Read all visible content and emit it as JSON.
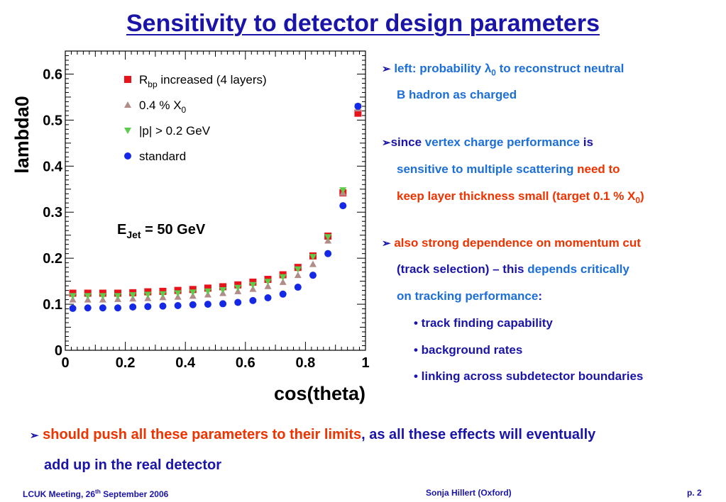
{
  "slide": {
    "title": "Sensitivity to detector design parameters",
    "left_bullet": {
      "arrow": "➢",
      "line1_a": "left: probability ",
      "lambda": "λ",
      "lambda_sub": "0",
      "line1_b": " to reconstruct neutral",
      "line2": "B hadron as charged"
    },
    "since_bullet": {
      "arrow": "➢",
      "since": "since ",
      "vertex": "vertex charge performance",
      "is": " is",
      "line2_blue": "sensitive to multiple scattering ",
      "line2_red": "need to",
      "line3_red": "keep layer thickness small (target 0.1 % X",
      "line3_sub": "0",
      "line3_close": ")"
    },
    "also_bullet": {
      "arrow": "➢",
      "line1": "also strong dependence on momentum cut",
      "line2_navy": "(track selection) – this ",
      "line2_blue": "depends critically",
      "line3_blue": "on tracking performance",
      "line3_colon": ":"
    },
    "sub_bullets": [
      "• track finding capability",
      "• background rates",
      "• linking across subdetector boundaries"
    ],
    "bottom": {
      "arrow": "➢",
      "red": "should push all these parameters to their limits",
      "navy": ", as all these effects will eventually",
      "line2": "add up in the real detector"
    },
    "footer": {
      "left_a": "LCUK Meeting, 26",
      "left_sup": "th",
      "left_b": " September 2006",
      "center": "Sonja Hillert (Oxford)",
      "right": "p. 2"
    }
  },
  "chart_data": {
    "type": "scatter",
    "xlabel": "cos(theta)",
    "ylabel": "lambda0",
    "xlim": [
      0,
      1
    ],
    "ylim": [
      0,
      0.65
    ],
    "xticks": [
      "0",
      "0.2",
      "0.4",
      "0.6",
      "0.8",
      "1"
    ],
    "yticks": [
      "0",
      "0.1",
      "0.2",
      "0.3",
      "0.4",
      "0.5",
      "0.6"
    ],
    "annotation": {
      "main": "E",
      "sub": "Jet",
      "rest": " = 50 GeV"
    },
    "legend_position": "top-center",
    "x": [
      0.025,
      0.075,
      0.125,
      0.175,
      0.225,
      0.275,
      0.325,
      0.375,
      0.425,
      0.475,
      0.525,
      0.575,
      0.625,
      0.675,
      0.725,
      0.775,
      0.825,
      0.875,
      0.925,
      0.975
    ],
    "series": [
      {
        "name": "R_bp increased (4 layers)",
        "legend_main": "R",
        "legend_sub": "bp",
        "legend_rest": " increased (4 layers)",
        "marker": "square",
        "color": "#e8141c",
        "values": [
          0.124,
          0.124,
          0.124,
          0.124,
          0.125,
          0.127,
          0.128,
          0.13,
          0.132,
          0.135,
          0.138,
          0.142,
          0.148,
          0.154,
          0.164,
          0.18,
          0.205,
          0.248,
          0.342,
          0.515
        ]
      },
      {
        "name": "0.4 % X0",
        "legend_main": "0.4 % X",
        "legend_sub": "0",
        "legend_rest": "",
        "marker": "triangle",
        "color": "#b28c88",
        "values": [
          0.11,
          0.11,
          0.11,
          0.111,
          0.112,
          0.113,
          0.115,
          0.116,
          0.118,
          0.121,
          0.124,
          0.128,
          0.133,
          0.139,
          0.148,
          0.163,
          0.187,
          0.238,
          0.342,
          0.525
        ]
      },
      {
        "name": "|p| > 0.2 GeV",
        "legend_main": "|p| > 0.2 GeV",
        "legend_sub": "",
        "legend_rest": "",
        "marker": "triangle-down",
        "color": "#5ccc4c",
        "values": [
          0.118,
          0.118,
          0.118,
          0.118,
          0.12,
          0.121,
          0.122,
          0.124,
          0.126,
          0.128,
          0.131,
          0.136,
          0.142,
          0.149,
          0.159,
          0.176,
          0.203,
          0.246,
          0.348,
          0.53
        ]
      },
      {
        "name": "standard",
        "legend_main": "standard",
        "legend_sub": "",
        "legend_rest": "",
        "marker": "circle",
        "color": "#1428e8",
        "values": [
          0.091,
          0.092,
          0.092,
          0.092,
          0.094,
          0.095,
          0.096,
          0.097,
          0.099,
          0.1,
          0.101,
          0.104,
          0.108,
          0.114,
          0.122,
          0.137,
          0.163,
          0.21,
          0.314,
          0.53
        ]
      }
    ]
  }
}
